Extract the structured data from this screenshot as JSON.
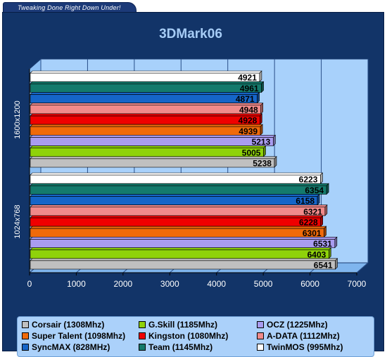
{
  "banner": {
    "text": "Tweaking Done Right Down Under!"
  },
  "chart_data": {
    "type": "bar",
    "orientation": "horizontal",
    "title": "3DMark06",
    "categories": [
      "1600x1200",
      "1024x768"
    ],
    "xlim": [
      0,
      7000
    ],
    "xticks": [
      0,
      1000,
      2000,
      3000,
      4000,
      5000,
      6000,
      7000
    ],
    "grid": true,
    "legend_position": "bottom",
    "series": [
      {
        "name": "TwinMOS (995Mhz)",
        "color": "#ffffff",
        "values": [
          4921,
          6223
        ]
      },
      {
        "name": "Team (1145Mhz)",
        "color": "#147a6c",
        "values": [
          4961,
          6354
        ]
      },
      {
        "name": "SyncMAX (828MHz)",
        "color": "#1565c8",
        "values": [
          4871,
          6158
        ]
      },
      {
        "name": "A-DATA (1112Mhz)",
        "color": "#f08a8a",
        "values": [
          4948,
          6321
        ]
      },
      {
        "name": "Kingston (1080Mhz)",
        "color": "#f00000",
        "values": [
          4928,
          6228
        ]
      },
      {
        "name": "Super Talent (1098Mhz)",
        "color": "#f06a0a",
        "values": [
          4939,
          6301
        ]
      },
      {
        "name": "OCZ (1225Mhz)",
        "color": "#a99cf0",
        "values": [
          5213,
          6531
        ]
      },
      {
        "name": "G.Skill (1185Mhz)",
        "color": "#8fd20a",
        "values": [
          5005,
          6403
        ]
      },
      {
        "name": "Corsair (1308Mhz)",
        "color": "#c0c0c0",
        "values": [
          5238,
          6541
        ]
      }
    ],
    "legend_order": [
      "Corsair (1308Mhz)",
      "G.Skill (1185Mhz)",
      "OCZ (1225Mhz)",
      "Super Talent (1098Mhz)",
      "Kingston (1080Mhz)",
      "A-DATA (1112Mhz)",
      "SyncMAX (828MHz)",
      "Team (1145Mhz)",
      "TwinMOS (995Mhz)"
    ]
  }
}
